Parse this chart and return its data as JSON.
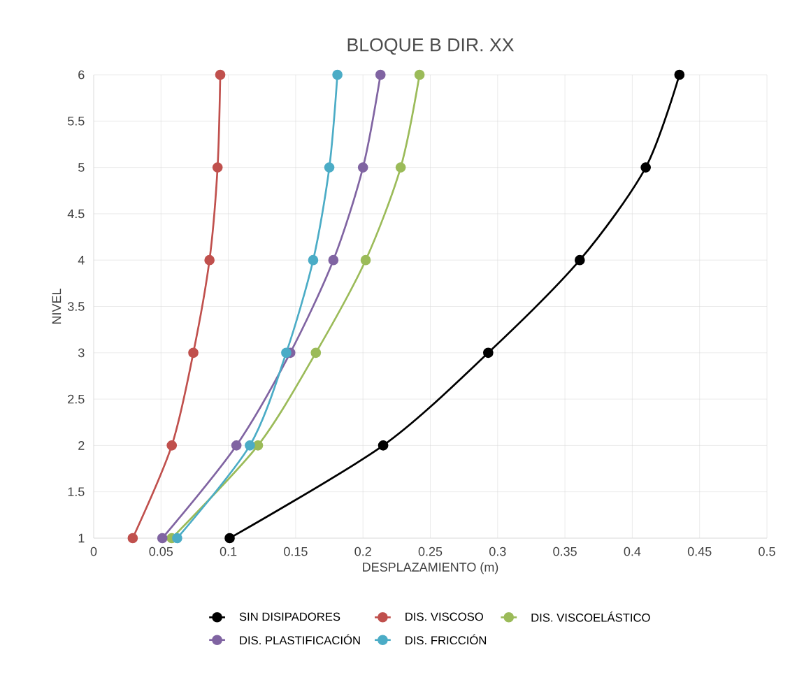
{
  "chart_data": {
    "type": "line",
    "title": "BLOQUE B DIR. XX",
    "xlabel": "DESPLAZAMIENTO (m)",
    "ylabel": "NIVEL",
    "xlim": [
      0,
      0.5
    ],
    "xticks": [
      0,
      0.05,
      0.1,
      0.15,
      0.2,
      0.25,
      0.3,
      0.35,
      0.4,
      0.45,
      0.5
    ],
    "ylim": [
      1,
      6
    ],
    "yticks": [
      1,
      1.5,
      2,
      2.5,
      3,
      3.5,
      4,
      4.5,
      5,
      5.5,
      6
    ],
    "grid": true,
    "legend": "bottom",
    "marker": "circle",
    "line_style": "solid",
    "series": [
      {
        "name": "SIN DISIPADORES",
        "color": "#000000",
        "x": [
          0.101,
          0.215,
          0.293,
          0.361,
          0.41,
          0.435
        ],
        "values": [
          1,
          2,
          3,
          4,
          5,
          6
        ]
      },
      {
        "name": "DIS. VISCOSO",
        "color": "#c0504d",
        "x": [
          0.029,
          0.058,
          0.074,
          0.086,
          0.092,
          0.094
        ],
        "values": [
          1,
          2,
          3,
          4,
          5,
          6
        ]
      },
      {
        "name": "DIS. VISCOELÁSTICO",
        "color": "#9bbb59",
        "x": [
          0.058,
          0.122,
          0.165,
          0.202,
          0.228,
          0.242
        ],
        "values": [
          1,
          2,
          3,
          4,
          5,
          6
        ]
      },
      {
        "name": "DIS. PLASTIFICACIÓN",
        "color": "#8064a2",
        "x": [
          0.051,
          0.106,
          0.146,
          0.178,
          0.2,
          0.213
        ],
        "values": [
          1,
          2,
          3,
          4,
          5,
          6
        ]
      },
      {
        "name": "DIS. FRICCIÓN",
        "color": "#4bacc6",
        "x": [
          0.062,
          0.116,
          0.143,
          0.163,
          0.175,
          0.181
        ],
        "values": [
          1,
          2,
          3,
          4,
          5,
          6
        ]
      }
    ]
  }
}
